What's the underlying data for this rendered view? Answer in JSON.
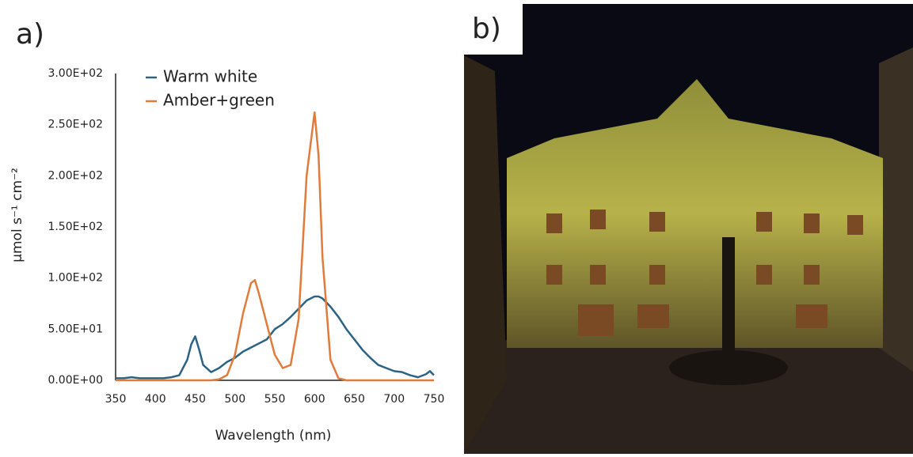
{
  "chart_data": {
    "type": "line",
    "panel_label": "a)",
    "xlabel": "Wavelength (nm)",
    "ylabel": "μmol s⁻¹ cm⁻²",
    "x": [
      350,
      360,
      370,
      380,
      390,
      400,
      410,
      420,
      430,
      440,
      445,
      450,
      455,
      460,
      470,
      480,
      490,
      500,
      510,
      520,
      525,
      530,
      540,
      550,
      560,
      570,
      580,
      590,
      600,
      605,
      610,
      620,
      630,
      640,
      650,
      660,
      670,
      680,
      690,
      700,
      710,
      720,
      730,
      740,
      745,
      750
    ],
    "series": [
      {
        "name": "Warm white",
        "color": "#2b6385",
        "values": [
          2,
          2,
          3,
          2,
          2,
          2,
          2,
          3,
          5,
          20,
          35,
          43,
          30,
          15,
          8,
          12,
          18,
          22,
          28,
          32,
          34,
          36,
          40,
          50,
          55,
          62,
          70,
          78,
          82,
          82,
          80,
          72,
          62,
          50,
          40,
          30,
          22,
          15,
          12,
          9,
          8,
          5,
          3,
          6,
          9,
          5
        ]
      },
      {
        "name": "Amber+green",
        "color": "#e07b3c",
        "values": [
          0,
          0,
          0,
          0,
          0,
          0,
          0,
          0,
          0,
          0,
          0,
          0,
          0,
          0,
          0,
          1,
          5,
          25,
          65,
          95,
          98,
          85,
          55,
          25,
          12,
          15,
          60,
          200,
          262,
          220,
          120,
          20,
          2,
          0,
          0,
          0,
          0,
          0,
          0,
          0,
          0,
          0,
          0,
          0,
          0,
          0
        ]
      }
    ],
    "xlim": [
      350,
      750
    ],
    "xticks": [
      350,
      400,
      450,
      500,
      550,
      600,
      650,
      700,
      750
    ],
    "ylim": [
      0,
      300
    ],
    "yticks": [
      {
        "value": 0,
        "label": "0.00E+00"
      },
      {
        "value": 50,
        "label": "5.00E+01"
      },
      {
        "value": 100,
        "label": "1.00E+02"
      },
      {
        "value": 150,
        "label": "1.50E+02"
      },
      {
        "value": 200,
        "label": "2.00E+02"
      },
      {
        "value": 250,
        "label": "2.50E+02"
      },
      {
        "value": 300,
        "label": "3.00E+02"
      }
    ],
    "grid": false,
    "legend": "upper left"
  },
  "photo": {
    "panel_label": "b)"
  }
}
